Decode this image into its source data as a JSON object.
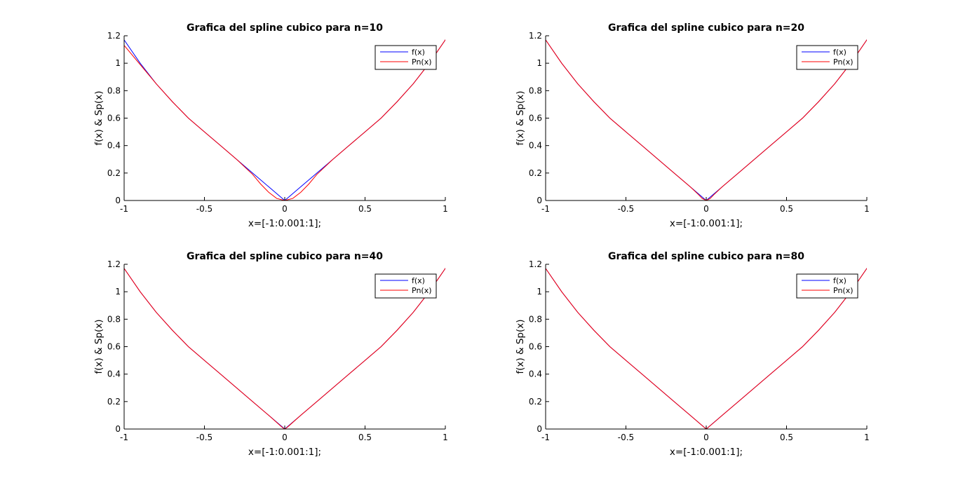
{
  "chart_data": [
    {
      "type": "line",
      "title": "Grafica del spline cubico para n=10",
      "xlabel": "x=[-1:0.001:1];",
      "ylabel": "f(x) & Sp(x)",
      "xlim": [
        -1,
        1
      ],
      "ylim": [
        0,
        1.2
      ],
      "xticks": [
        "-1",
        "-0.5",
        "0",
        "0.5",
        "1"
      ],
      "yticks": [
        "0",
        "0.2",
        "0.4",
        "0.6",
        "0.8",
        "1",
        "1.2"
      ],
      "grid": false,
      "legend_position": "top-right",
      "series": [
        {
          "name": "f(x)",
          "color": "#0000ff",
          "x": [
            -1.0,
            -0.9,
            -0.8,
            -0.7,
            -0.6,
            -0.5,
            -0.4,
            -0.3,
            -0.2,
            -0.1,
            0.0,
            0.1,
            0.2,
            0.3,
            0.4,
            0.5,
            0.6,
            0.7,
            0.8,
            0.9,
            1.0,
            1.1
          ],
          "y": [
            1.17,
            1.0,
            0.85,
            0.72,
            0.6,
            0.5,
            0.4,
            0.3,
            0.2,
            0.1,
            0.0,
            0.1,
            0.2,
            0.3,
            0.4,
            0.5,
            0.6,
            0.72,
            0.85,
            1.0,
            1.17,
            1.33
          ]
        },
        {
          "name": "Pn(x)",
          "color": "#ff0000",
          "x": [
            -1.0,
            -0.9,
            -0.8,
            -0.7,
            -0.6,
            -0.5,
            -0.4,
            -0.3,
            -0.2,
            -0.15,
            -0.1,
            -0.05,
            0.0,
            0.05,
            0.1,
            0.15,
            0.2,
            0.3,
            0.4,
            0.5,
            0.6,
            0.7,
            0.8,
            0.9,
            1.0,
            1.1
          ],
          "y": [
            1.13,
            0.99,
            0.85,
            0.72,
            0.6,
            0.5,
            0.4,
            0.3,
            0.19,
            0.12,
            0.06,
            0.015,
            0.0,
            0.015,
            0.06,
            0.12,
            0.19,
            0.3,
            0.4,
            0.5,
            0.6,
            0.72,
            0.85,
            1.0,
            1.17,
            1.33
          ]
        }
      ]
    },
    {
      "type": "line",
      "title": "Grafica del spline cubico para n=20",
      "xlabel": "x=[-1:0.001:1];",
      "ylabel": "f(x) & Sp(x)",
      "xlim": [
        -1,
        1
      ],
      "ylim": [
        0,
        1.2
      ],
      "xticks": [
        "-1",
        "-0.5",
        "0",
        "0.5",
        "1"
      ],
      "yticks": [
        "0",
        "0.2",
        "0.4",
        "0.6",
        "0.8",
        "1",
        "1.2"
      ],
      "grid": false,
      "legend_position": "top-right",
      "series": [
        {
          "name": "f(x)",
          "color": "#0000ff",
          "x": [
            -1.0,
            -0.9,
            -0.8,
            -0.7,
            -0.6,
            -0.5,
            -0.4,
            -0.3,
            -0.2,
            -0.1,
            0.0,
            0.1,
            0.2,
            0.3,
            0.4,
            0.5,
            0.6,
            0.7,
            0.8,
            0.9,
            1.0,
            1.1
          ],
          "y": [
            1.17,
            1.0,
            0.85,
            0.72,
            0.6,
            0.5,
            0.4,
            0.3,
            0.2,
            0.1,
            0.0,
            0.1,
            0.2,
            0.3,
            0.4,
            0.5,
            0.6,
            0.72,
            0.85,
            1.0,
            1.17,
            1.33
          ]
        },
        {
          "name": "Pn(x)",
          "color": "#ff0000",
          "x": [
            -1.0,
            -0.9,
            -0.8,
            -0.7,
            -0.6,
            -0.5,
            -0.4,
            -0.3,
            -0.2,
            -0.1,
            -0.05,
            -0.025,
            0.0,
            0.025,
            0.05,
            0.1,
            0.2,
            0.3,
            0.4,
            0.5,
            0.6,
            0.7,
            0.8,
            0.9,
            1.0,
            1.1
          ],
          "y": [
            1.17,
            1.0,
            0.85,
            0.72,
            0.6,
            0.5,
            0.4,
            0.3,
            0.2,
            0.1,
            0.045,
            0.015,
            0.0,
            0.015,
            0.045,
            0.1,
            0.2,
            0.3,
            0.4,
            0.5,
            0.6,
            0.72,
            0.85,
            1.0,
            1.17,
            1.33
          ]
        }
      ]
    },
    {
      "type": "line",
      "title": "Grafica del spline cubico para n=40",
      "xlabel": "x=[-1:0.001:1];",
      "ylabel": "f(x) & Sp(x)",
      "xlim": [
        -1,
        1
      ],
      "ylim": [
        0,
        1.2
      ],
      "xticks": [
        "-1",
        "-0.5",
        "0",
        "0.5",
        "1"
      ],
      "yticks": [
        "0",
        "0.2",
        "0.4",
        "0.6",
        "0.8",
        "1",
        "1.2"
      ],
      "grid": false,
      "legend_position": "top-right",
      "series": [
        {
          "name": "f(x)",
          "color": "#0000ff",
          "x": [
            -1.0,
            -0.9,
            -0.8,
            -0.7,
            -0.6,
            -0.5,
            -0.4,
            -0.3,
            -0.2,
            -0.1,
            0.0,
            0.1,
            0.2,
            0.3,
            0.4,
            0.5,
            0.6,
            0.7,
            0.8,
            0.9,
            1.0,
            1.1
          ],
          "y": [
            1.17,
            1.0,
            0.85,
            0.72,
            0.6,
            0.5,
            0.4,
            0.3,
            0.2,
            0.1,
            0.0,
            0.1,
            0.2,
            0.3,
            0.4,
            0.5,
            0.6,
            0.72,
            0.85,
            1.0,
            1.17,
            1.33
          ]
        },
        {
          "name": "Pn(x)",
          "color": "#ff0000",
          "x": [
            -1.0,
            -0.9,
            -0.8,
            -0.7,
            -0.6,
            -0.5,
            -0.4,
            -0.3,
            -0.2,
            -0.1,
            -0.025,
            -0.01,
            0.0,
            0.01,
            0.025,
            0.1,
            0.2,
            0.3,
            0.4,
            0.5,
            0.6,
            0.7,
            0.8,
            0.9,
            1.0,
            1.1
          ],
          "y": [
            1.17,
            1.0,
            0.85,
            0.72,
            0.6,
            0.5,
            0.4,
            0.3,
            0.2,
            0.1,
            0.022,
            0.007,
            0.0,
            0.007,
            0.022,
            0.1,
            0.2,
            0.3,
            0.4,
            0.5,
            0.6,
            0.72,
            0.85,
            1.0,
            1.17,
            1.33
          ]
        }
      ]
    },
    {
      "type": "line",
      "title": "Grafica del spline cubico para n=80",
      "xlabel": "x=[-1:0.001:1];",
      "ylabel": "f(x) & Sp(x)",
      "xlim": [
        -1,
        1
      ],
      "ylim": [
        0,
        1.2
      ],
      "xticks": [
        "-1",
        "-0.5",
        "0",
        "0.5",
        "1"
      ],
      "yticks": [
        "0",
        "0.2",
        "0.4",
        "0.6",
        "0.8",
        "1",
        "1.2"
      ],
      "grid": false,
      "legend_position": "top-right",
      "series": [
        {
          "name": "f(x)",
          "color": "#0000ff",
          "x": [
            -1.0,
            -0.9,
            -0.8,
            -0.7,
            -0.6,
            -0.5,
            -0.4,
            -0.3,
            -0.2,
            -0.1,
            0.0,
            0.1,
            0.2,
            0.3,
            0.4,
            0.5,
            0.6,
            0.7,
            0.8,
            0.9,
            1.0,
            1.1
          ],
          "y": [
            1.17,
            1.0,
            0.85,
            0.72,
            0.6,
            0.5,
            0.4,
            0.3,
            0.2,
            0.1,
            0.0,
            0.1,
            0.2,
            0.3,
            0.4,
            0.5,
            0.6,
            0.72,
            0.85,
            1.0,
            1.17,
            1.33
          ]
        },
        {
          "name": "Pn(x)",
          "color": "#ff0000",
          "x": [
            -1.0,
            -0.9,
            -0.8,
            -0.7,
            -0.6,
            -0.5,
            -0.4,
            -0.3,
            -0.2,
            -0.1,
            -0.0125,
            0.0,
            0.0125,
            0.1,
            0.2,
            0.3,
            0.4,
            0.5,
            0.6,
            0.7,
            0.8,
            0.9,
            1.0,
            1.1
          ],
          "y": [
            1.17,
            1.0,
            0.85,
            0.72,
            0.6,
            0.5,
            0.4,
            0.3,
            0.2,
            0.1,
            0.012,
            0.0,
            0.012,
            0.1,
            0.2,
            0.3,
            0.4,
            0.5,
            0.6,
            0.72,
            0.85,
            1.0,
            1.17,
            1.33
          ]
        }
      ]
    }
  ]
}
